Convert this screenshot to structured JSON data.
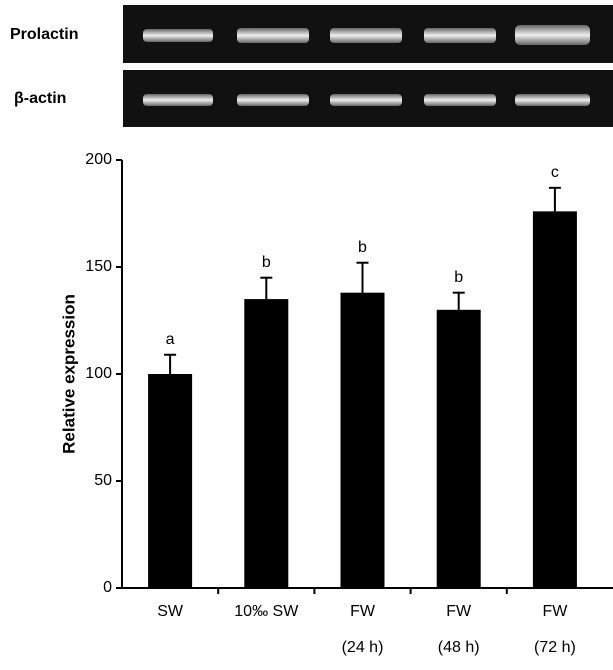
{
  "gel_labels": [
    "Prolactin",
    "β-actin"
  ],
  "chart_data": {
    "type": "bar",
    "y_label": "Relative expression",
    "categories": [
      "SW",
      "10‰ SW",
      "FW",
      "FW",
      "FW"
    ],
    "category_notes": [
      null,
      null,
      "(24 h)",
      "(48 h)",
      "(72 h)"
    ],
    "values": [
      100,
      135,
      138,
      130,
      176
    ],
    "errors": [
      9,
      10,
      14,
      8,
      11
    ],
    "letters": [
      "a",
      "b",
      "b",
      "b",
      "c"
    ],
    "color": "#000000",
    "ylim": [
      0,
      200
    ],
    "yticks": [
      0,
      50,
      100,
      150,
      200
    ]
  }
}
